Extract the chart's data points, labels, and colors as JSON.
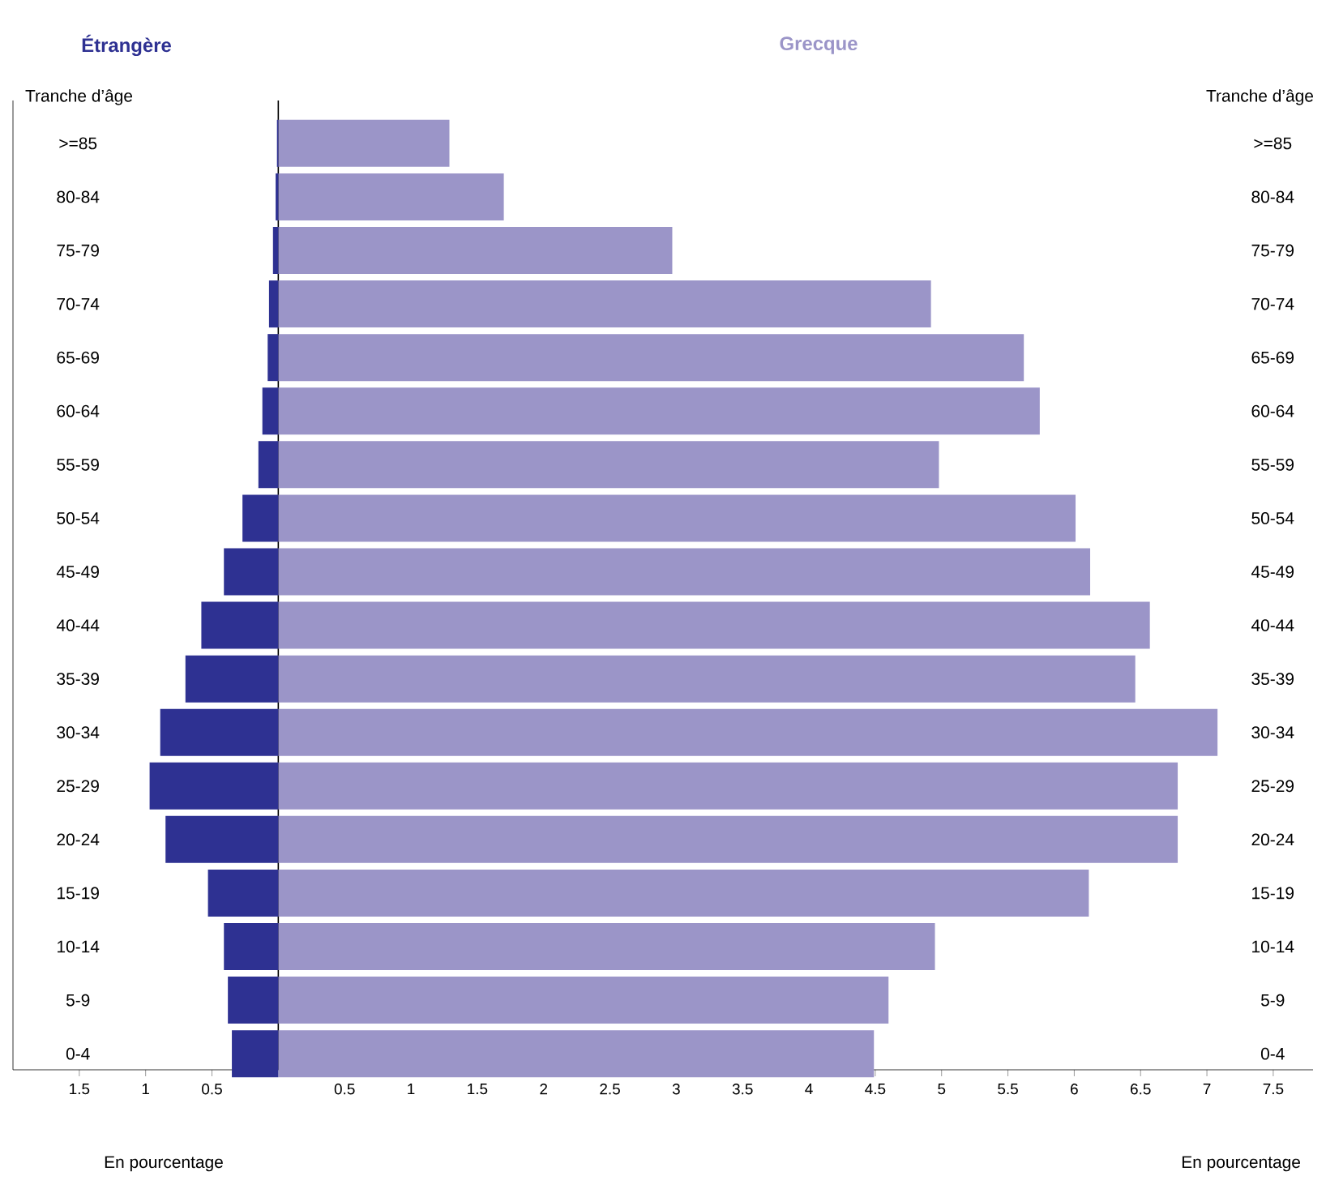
{
  "chart_data": {
    "type": "bar",
    "orientation": "horizontal",
    "ylabel": "Tranche d’âge",
    "y2label": "Tranche d’âge",
    "xlabel": "En pourcentage",
    "annotations": [
      "En pourcentage"
    ],
    "categories": [
      ">=85",
      "80-84",
      "75-79",
      "70-74",
      "65-69",
      "60-64",
      "55-59",
      "50-54",
      "45-49",
      "40-44",
      "35-39",
      "30-34",
      "25-29",
      "20-24",
      "15-19",
      "10-14",
      "5-9",
      "0-4"
    ],
    "series": [
      {
        "name": "Étrangère",
        "color": "#2e3192",
        "values": [
          -0.01,
          -0.02,
          -0.04,
          -0.07,
          -0.08,
          -0.12,
          -0.15,
          -0.27,
          -0.41,
          -0.58,
          -0.7,
          -0.89,
          -0.97,
          -0.85,
          -0.53,
          -0.41,
          -0.38,
          -0.35
        ]
      },
      {
        "name": "Grecque",
        "color": "#9b95c8",
        "values": [
          1.29,
          1.7,
          2.97,
          4.92,
          5.62,
          5.74,
          4.98,
          6.01,
          6.12,
          6.57,
          6.46,
          7.08,
          6.78,
          6.78,
          6.11,
          4.95,
          4.6,
          4.49
        ]
      }
    ],
    "xlim": [
      -2,
      7.8
    ],
    "xticks": [
      {
        "value": -1.5,
        "label": "1.5"
      },
      {
        "value": -1,
        "label": "1"
      },
      {
        "value": -0.5,
        "label": "0.5"
      },
      0.5,
      1,
      1.5,
      2,
      2.5,
      3,
      3.5,
      4,
      4.5,
      5,
      5.5,
      6,
      6.5,
      7,
      7.5
    ],
    "ref_lines": [
      {
        "axis": "x",
        "value": 0,
        "color": "#000000"
      }
    ],
    "stacked": true,
    "grid": false,
    "legend": false
  }
}
